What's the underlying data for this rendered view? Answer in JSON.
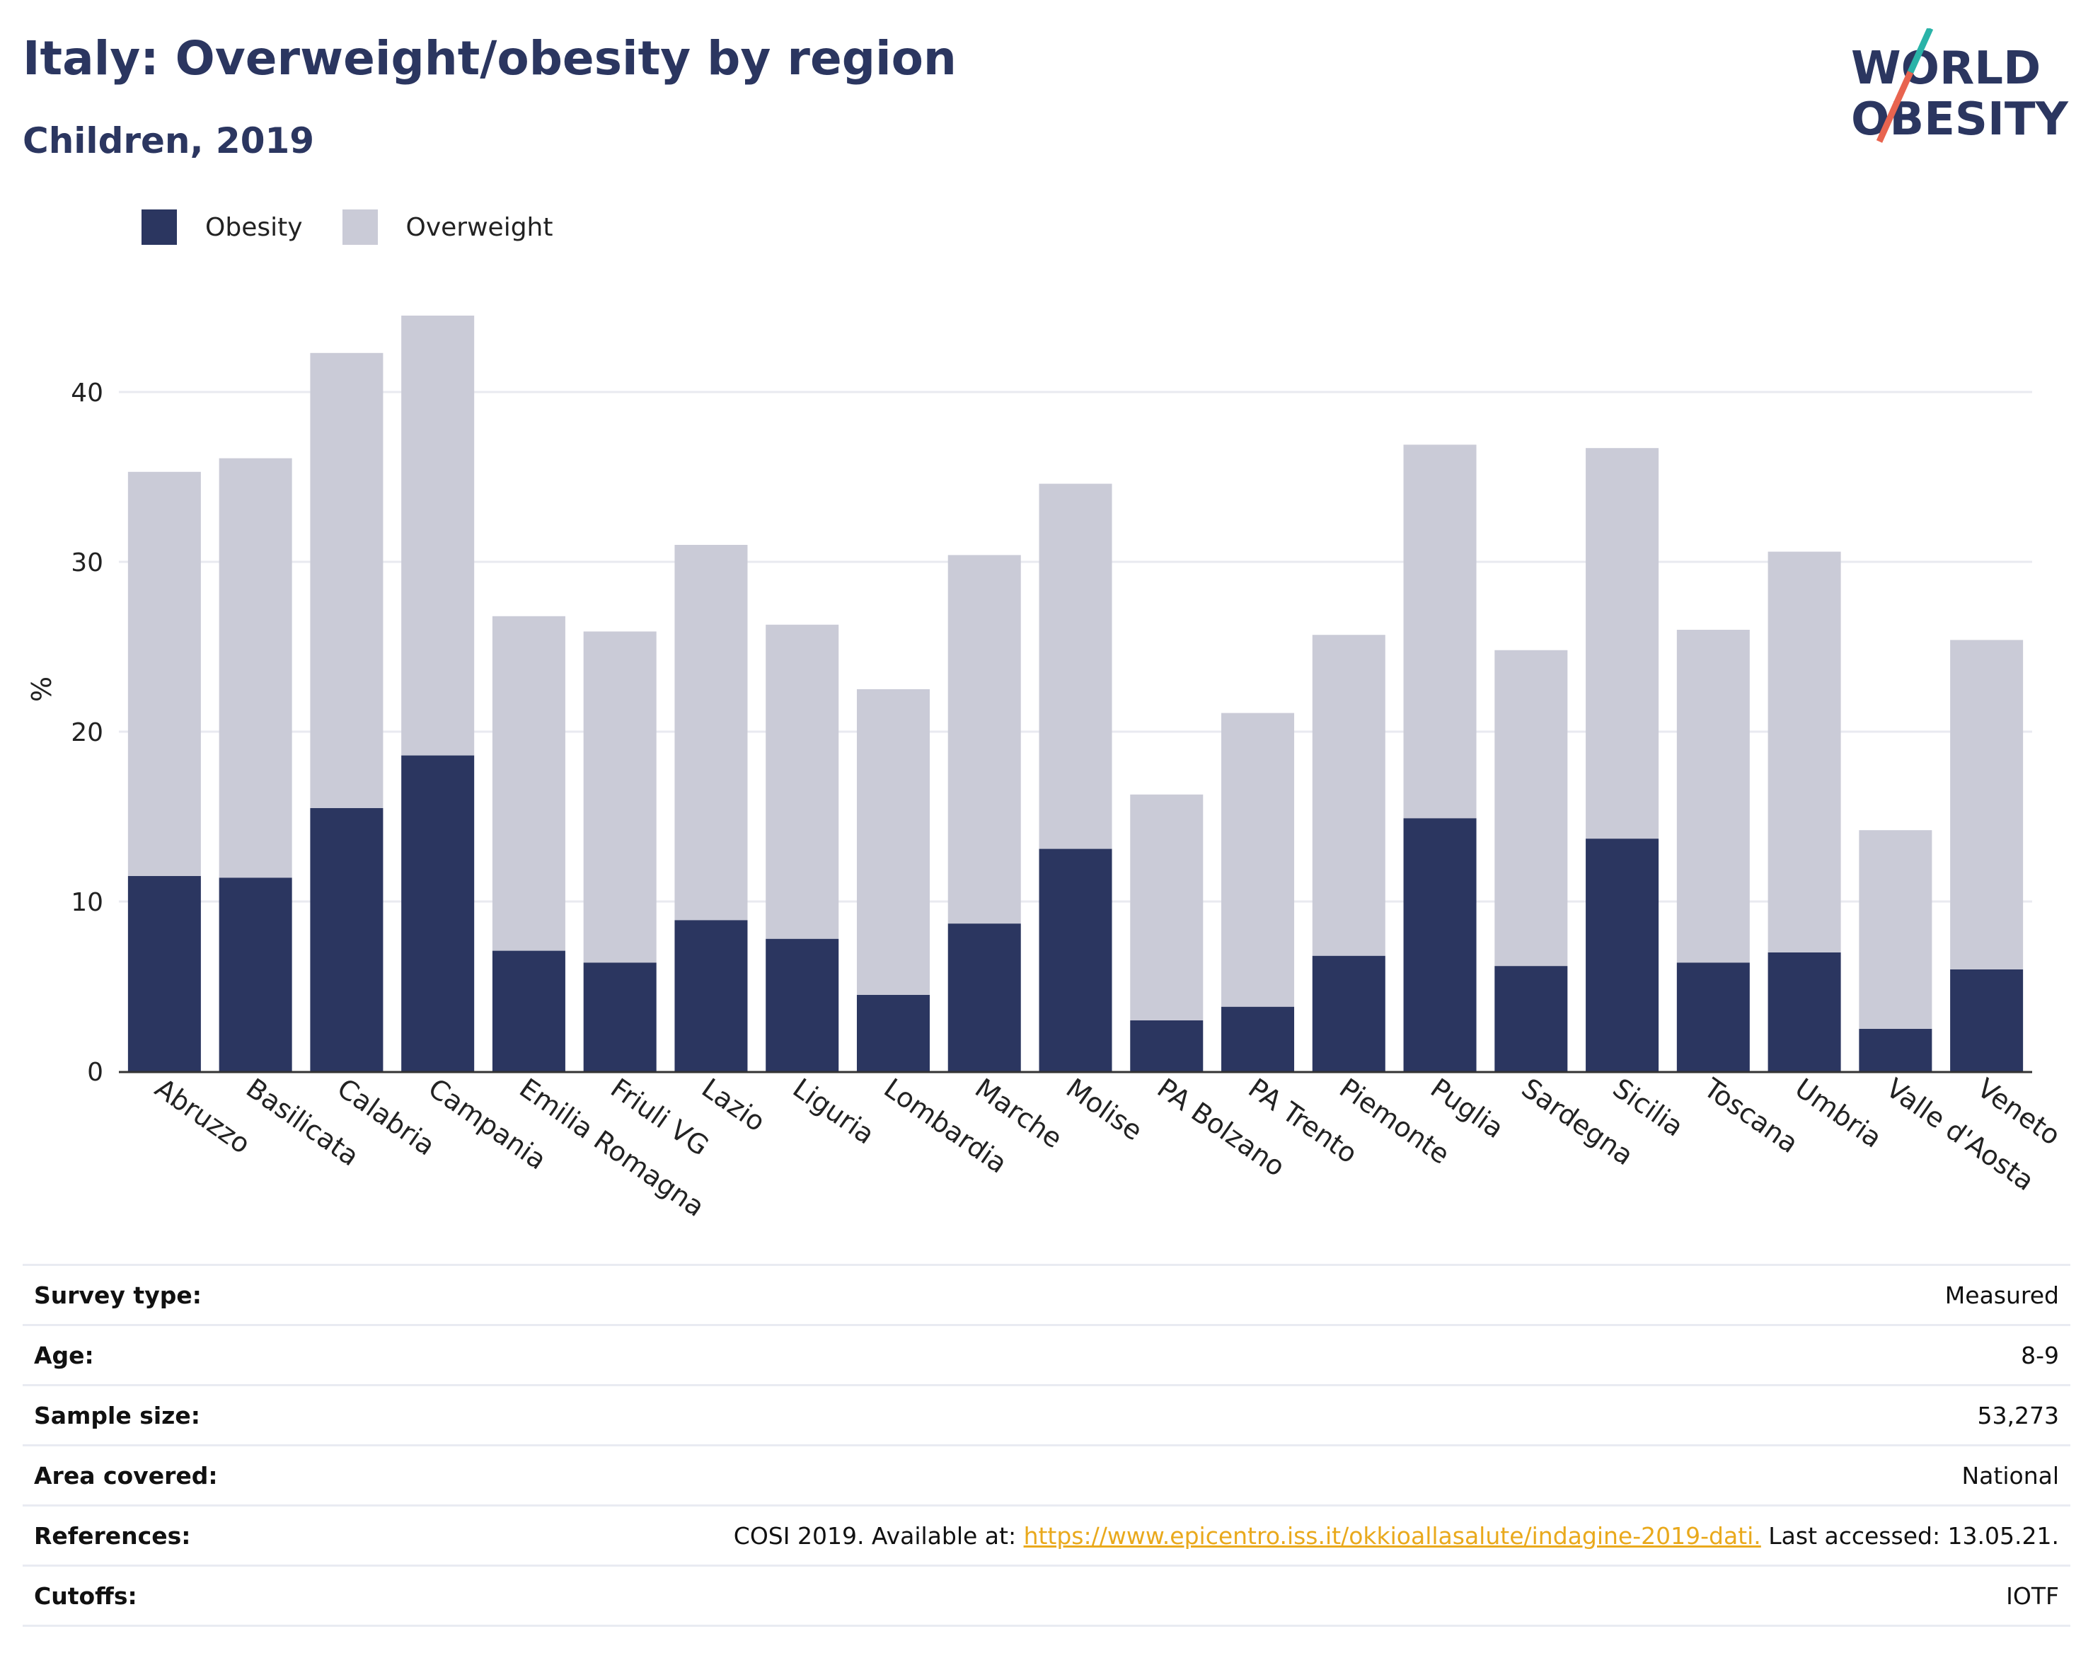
{
  "header": {
    "title": "Italy: Overweight/obesity by region",
    "subtitle": "Children, 2019"
  },
  "logo": {
    "line1": "WORLD",
    "line2": "OBESITY"
  },
  "colors": {
    "obesity": "#2b3660",
    "overweight": "#cacbd7",
    "text": "#2b3660",
    "link": "#e9a91c",
    "grid": "#e9eaf0"
  },
  "chart_data": {
    "type": "bar",
    "stacked": true,
    "ylabel": "%",
    "xlabel": "",
    "ylim": [
      0,
      45
    ],
    "yticks": [
      0,
      10,
      20,
      30,
      40
    ],
    "grid": true,
    "legend_position": "top-left",
    "categories": [
      "Abruzzo",
      "Basilicata",
      "Calabria",
      "Campania",
      "Emilia Romagna",
      "Friuli VG",
      "Lazio",
      "Liguria",
      "Lombardia",
      "Marche",
      "Molise",
      "PA Bolzano",
      "PA Trento",
      "Piemonte",
      "Puglia",
      "Sardegna",
      "Sicilia",
      "Toscana",
      "Umbria",
      "Valle d'Aosta",
      "Veneto"
    ],
    "series": [
      {
        "name": "Obesity",
        "color": "#2b3660",
        "values": [
          11.5,
          11.4,
          15.5,
          18.6,
          7.1,
          6.4,
          8.9,
          7.8,
          4.5,
          8.7,
          13.1,
          3.0,
          3.8,
          6.8,
          14.9,
          6.2,
          13.7,
          6.4,
          7.0,
          2.5,
          6.0
        ]
      },
      {
        "name": "Overweight",
        "color": "#cacbd7",
        "values": [
          23.8,
          24.7,
          26.8,
          25.9,
          19.7,
          19.5,
          22.1,
          18.5,
          18.0,
          21.7,
          21.5,
          13.3,
          17.3,
          18.9,
          22.0,
          18.6,
          23.0,
          19.6,
          23.6,
          11.7,
          19.4
        ]
      }
    ]
  },
  "meta": [
    {
      "label": "Survey type:",
      "value": "Measured"
    },
    {
      "label": "Age:",
      "value": "8-9"
    },
    {
      "label": "Sample size:",
      "value": "53,273"
    },
    {
      "label": "Area covered:",
      "value": "National"
    },
    {
      "label": "References:",
      "value_prefix": "COSI 2019. Available at: ",
      "value_link": "https://www.epicentro.iss.it/okkioallasalute/indagine-2019-dati.",
      "value_suffix": " Last accessed: 13.05.21."
    },
    {
      "label": "Cutoffs:",
      "value": "IOTF"
    }
  ]
}
